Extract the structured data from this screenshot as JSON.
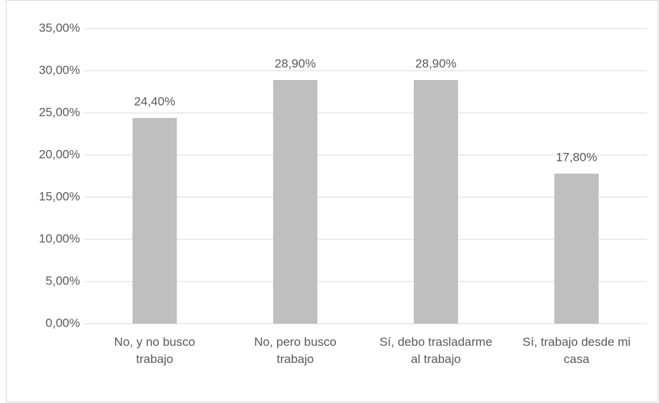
{
  "chart_data": {
    "type": "bar",
    "categories": [
      "No, y no busco trabajo",
      "No, pero busco trabajo",
      "Sí, debo trasladarme al trabajo",
      "Sí, trabajo desde mi casa"
    ],
    "values": [
      24.4,
      28.9,
      28.9,
      17.8
    ],
    "value_labels": [
      "24,40%",
      "28,90%",
      "28,90%",
      "17,80%"
    ],
    "color": "#bfbfbf",
    "ylim": [
      0,
      35
    ],
    "yticks": [
      {
        "value": 0,
        "label": "0,00%"
      },
      {
        "value": 5,
        "label": "5,00%"
      },
      {
        "value": 10,
        "label": "10,00%"
      },
      {
        "value": 15,
        "label": "15,00%"
      },
      {
        "value": 20,
        "label": "20,00%"
      },
      {
        "value": 25,
        "label": "25,00%"
      },
      {
        "value": 30,
        "label": "30,00%"
      },
      {
        "value": 35,
        "label": "35,00%"
      }
    ],
    "grid": true
  }
}
